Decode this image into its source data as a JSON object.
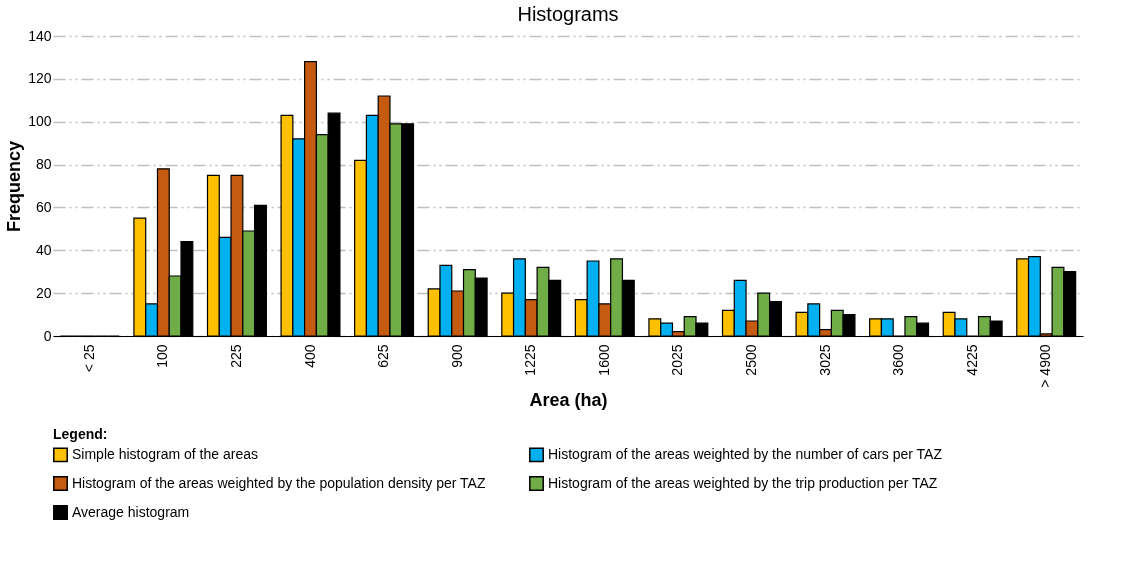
{
  "chart_data": {
    "type": "bar",
    "title": "Histograms",
    "xlabel": "Area (ha)",
    "ylabel": "Frequency",
    "legend_title": "Legend:",
    "categories": [
      "< 25",
      "100",
      "225",
      "400",
      "625",
      "900",
      "1225",
      "1600",
      "2025",
      "2500",
      "3025",
      "3600",
      "4225",
      "> 4900"
    ],
    "series": [
      {
        "name": "Simple histogram of the areas",
        "color": "#ffc000",
        "values": [
          0,
          55,
          75,
          103,
          82,
          22,
          20,
          17,
          8,
          12,
          11,
          8,
          11,
          36
        ]
      },
      {
        "name": "Histogram of the areas weighted by the number of cars per TAZ",
        "color": "#00b0f0",
        "values": [
          0,
          15,
          46,
          92,
          103,
          33,
          36,
          35,
          6,
          26,
          15,
          8,
          8,
          37
        ]
      },
      {
        "name": "Histogram of the areas weighted by the population density per TAZ",
        "color": "#c55a11",
        "values": [
          0,
          78,
          75,
          128,
          112,
          21,
          17,
          15,
          2,
          7,
          3,
          0,
          0,
          1
        ]
      },
      {
        "name": "Histogram of the areas weighted by the trip production per TAZ",
        "color": "#70ad47",
        "values": [
          0,
          28,
          49,
          94,
          99,
          31,
          32,
          36,
          9,
          20,
          12,
          9,
          9,
          32
        ]
      },
      {
        "name": "Average histogram",
        "color": "#000000",
        "values": [
          0,
          44,
          61,
          104,
          99,
          27,
          26,
          26,
          6,
          16,
          10,
          6,
          7,
          30
        ]
      }
    ],
    "ylim": [
      0,
      140
    ],
    "yticks": [
      0,
      20,
      40,
      60,
      80,
      100,
      120,
      140
    ],
    "grid": "y",
    "legend": "bottom"
  }
}
